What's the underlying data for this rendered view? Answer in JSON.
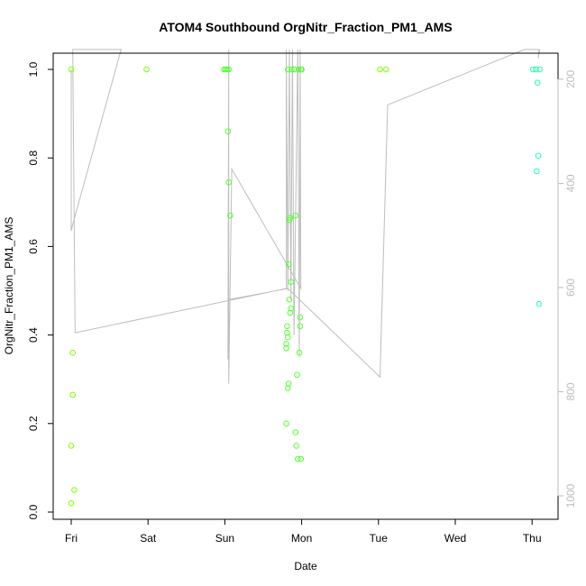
{
  "chart_data": {
    "type": "scatter",
    "title": "ATOM4 Southbound OrgNitr_Fraction_PM1_AMS",
    "xlabel": "Date",
    "ylabel": "OrgNitr_Fraction_PM1_AMS",
    "x_ticks": [
      "Fri",
      "Sat",
      "Sun",
      "Mon",
      "Tue",
      "Wed",
      "Thu"
    ],
    "xlim": [
      -0.3,
      6.35
    ],
    "ylim": [
      -0.015,
      1.045
    ],
    "y_ticks": [
      "0.0",
      "0.2",
      "0.4",
      "0.6",
      "0.8",
      "1.0"
    ],
    "y_tick_values": [
      0,
      0.2,
      0.4,
      0.6,
      0.8,
      1.0
    ],
    "y2_ticks": [
      "200",
      "400",
      "600",
      "800",
      "1000"
    ],
    "y2_tick_values": [
      200,
      400,
      600,
      800,
      1000
    ],
    "y2lim": [
      1045,
      150
    ],
    "colors": {
      "points_early": "#7fff00",
      "points_mid": "#55ff33",
      "points_late": "#22ffaa",
      "line": "#bebebe",
      "axis": "#000000"
    },
    "points": [
      [
        0.0,
        1.0
      ],
      [
        0.0,
        0.15
      ],
      [
        0.0,
        0.02
      ],
      [
        0.02,
        0.36
      ],
      [
        0.02,
        0.265
      ],
      [
        0.04,
        0.05
      ],
      [
        0.98,
        1.0
      ],
      [
        1.99,
        1.0
      ],
      [
        2.01,
        1.0
      ],
      [
        2.03,
        1.0
      ],
      [
        2.05,
        1.0
      ],
      [
        2.04,
        0.86
      ],
      [
        2.05,
        0.745
      ],
      [
        2.07,
        0.67
      ],
      [
        2.8,
        0.37
      ],
      [
        2.8,
        0.38
      ],
      [
        2.8,
        0.2
      ],
      [
        2.81,
        0.42
      ],
      [
        2.81,
        0.405
      ],
      [
        2.82,
        0.395
      ],
      [
        2.82,
        0.28
      ],
      [
        2.83,
        0.29
      ],
      [
        2.83,
        0.56
      ],
      [
        2.84,
        0.48
      ],
      [
        2.84,
        0.66
      ],
      [
        2.85,
        0.665
      ],
      [
        2.85,
        0.45
      ],
      [
        2.86,
        0.46
      ],
      [
        2.86,
        0.52
      ],
      [
        2.87,
        1.0
      ],
      [
        2.82,
        1.0
      ],
      [
        2.9,
        1.0
      ],
      [
        2.92,
        0.67
      ],
      [
        2.92,
        0.18
      ],
      [
        2.93,
        0.15
      ],
      [
        2.94,
        0.31
      ],
      [
        2.95,
        0.12
      ],
      [
        2.96,
        1.0
      ],
      [
        2.97,
        0.36
      ],
      [
        2.98,
        0.44
      ],
      [
        2.98,
        0.42
      ],
      [
        2.99,
        0.12
      ],
      [
        2.99,
        1.0
      ],
      [
        3.0,
        1.0
      ],
      [
        4.02,
        1.0
      ],
      [
        4.1,
        1.0
      ],
      [
        6.01,
        1.0
      ],
      [
        6.05,
        1.0
      ],
      [
        6.07,
        0.97
      ],
      [
        6.08,
        0.805
      ],
      [
        6.06,
        0.77
      ],
      [
        6.1,
        1.0
      ],
      [
        6.09,
        0.47
      ]
    ],
    "line": [
      [
        0.0,
        1.0
      ],
      [
        0.0,
        0.635
      ],
      [
        0.02,
        0.65
      ],
      [
        0.65,
        1.045
      ],
      [
        0.02,
        1.045
      ],
      [
        0.05,
        0.405
      ],
      [
        2.8,
        0.505
      ],
      [
        2.8,
        1.045
      ],
      [
        2.82,
        0.5
      ],
      [
        2.84,
        1.045
      ],
      [
        2.86,
        0.48
      ],
      [
        2.88,
        1.045
      ],
      [
        2.9,
        0.4
      ],
      [
        2.95,
        1.045
      ],
      [
        2.97,
        0.35
      ],
      [
        2.98,
        1.045
      ],
      [
        2.99,
        0.505
      ],
      [
        2.09,
        0.775
      ],
      [
        2.05,
        0.29
      ],
      [
        2.05,
        1.045
      ],
      [
        2.04,
        0.345
      ],
      [
        2.05,
        0.48
      ],
      [
        2.82,
        0.505
      ],
      [
        4.02,
        0.305
      ],
      [
        4.12,
        0.92
      ],
      [
        5.9,
        1.045
      ],
      [
        6.09,
        1.045
      ],
      [
        6.08,
        1.025
      ],
      [
        6.1,
        1.045
      ]
    ]
  }
}
